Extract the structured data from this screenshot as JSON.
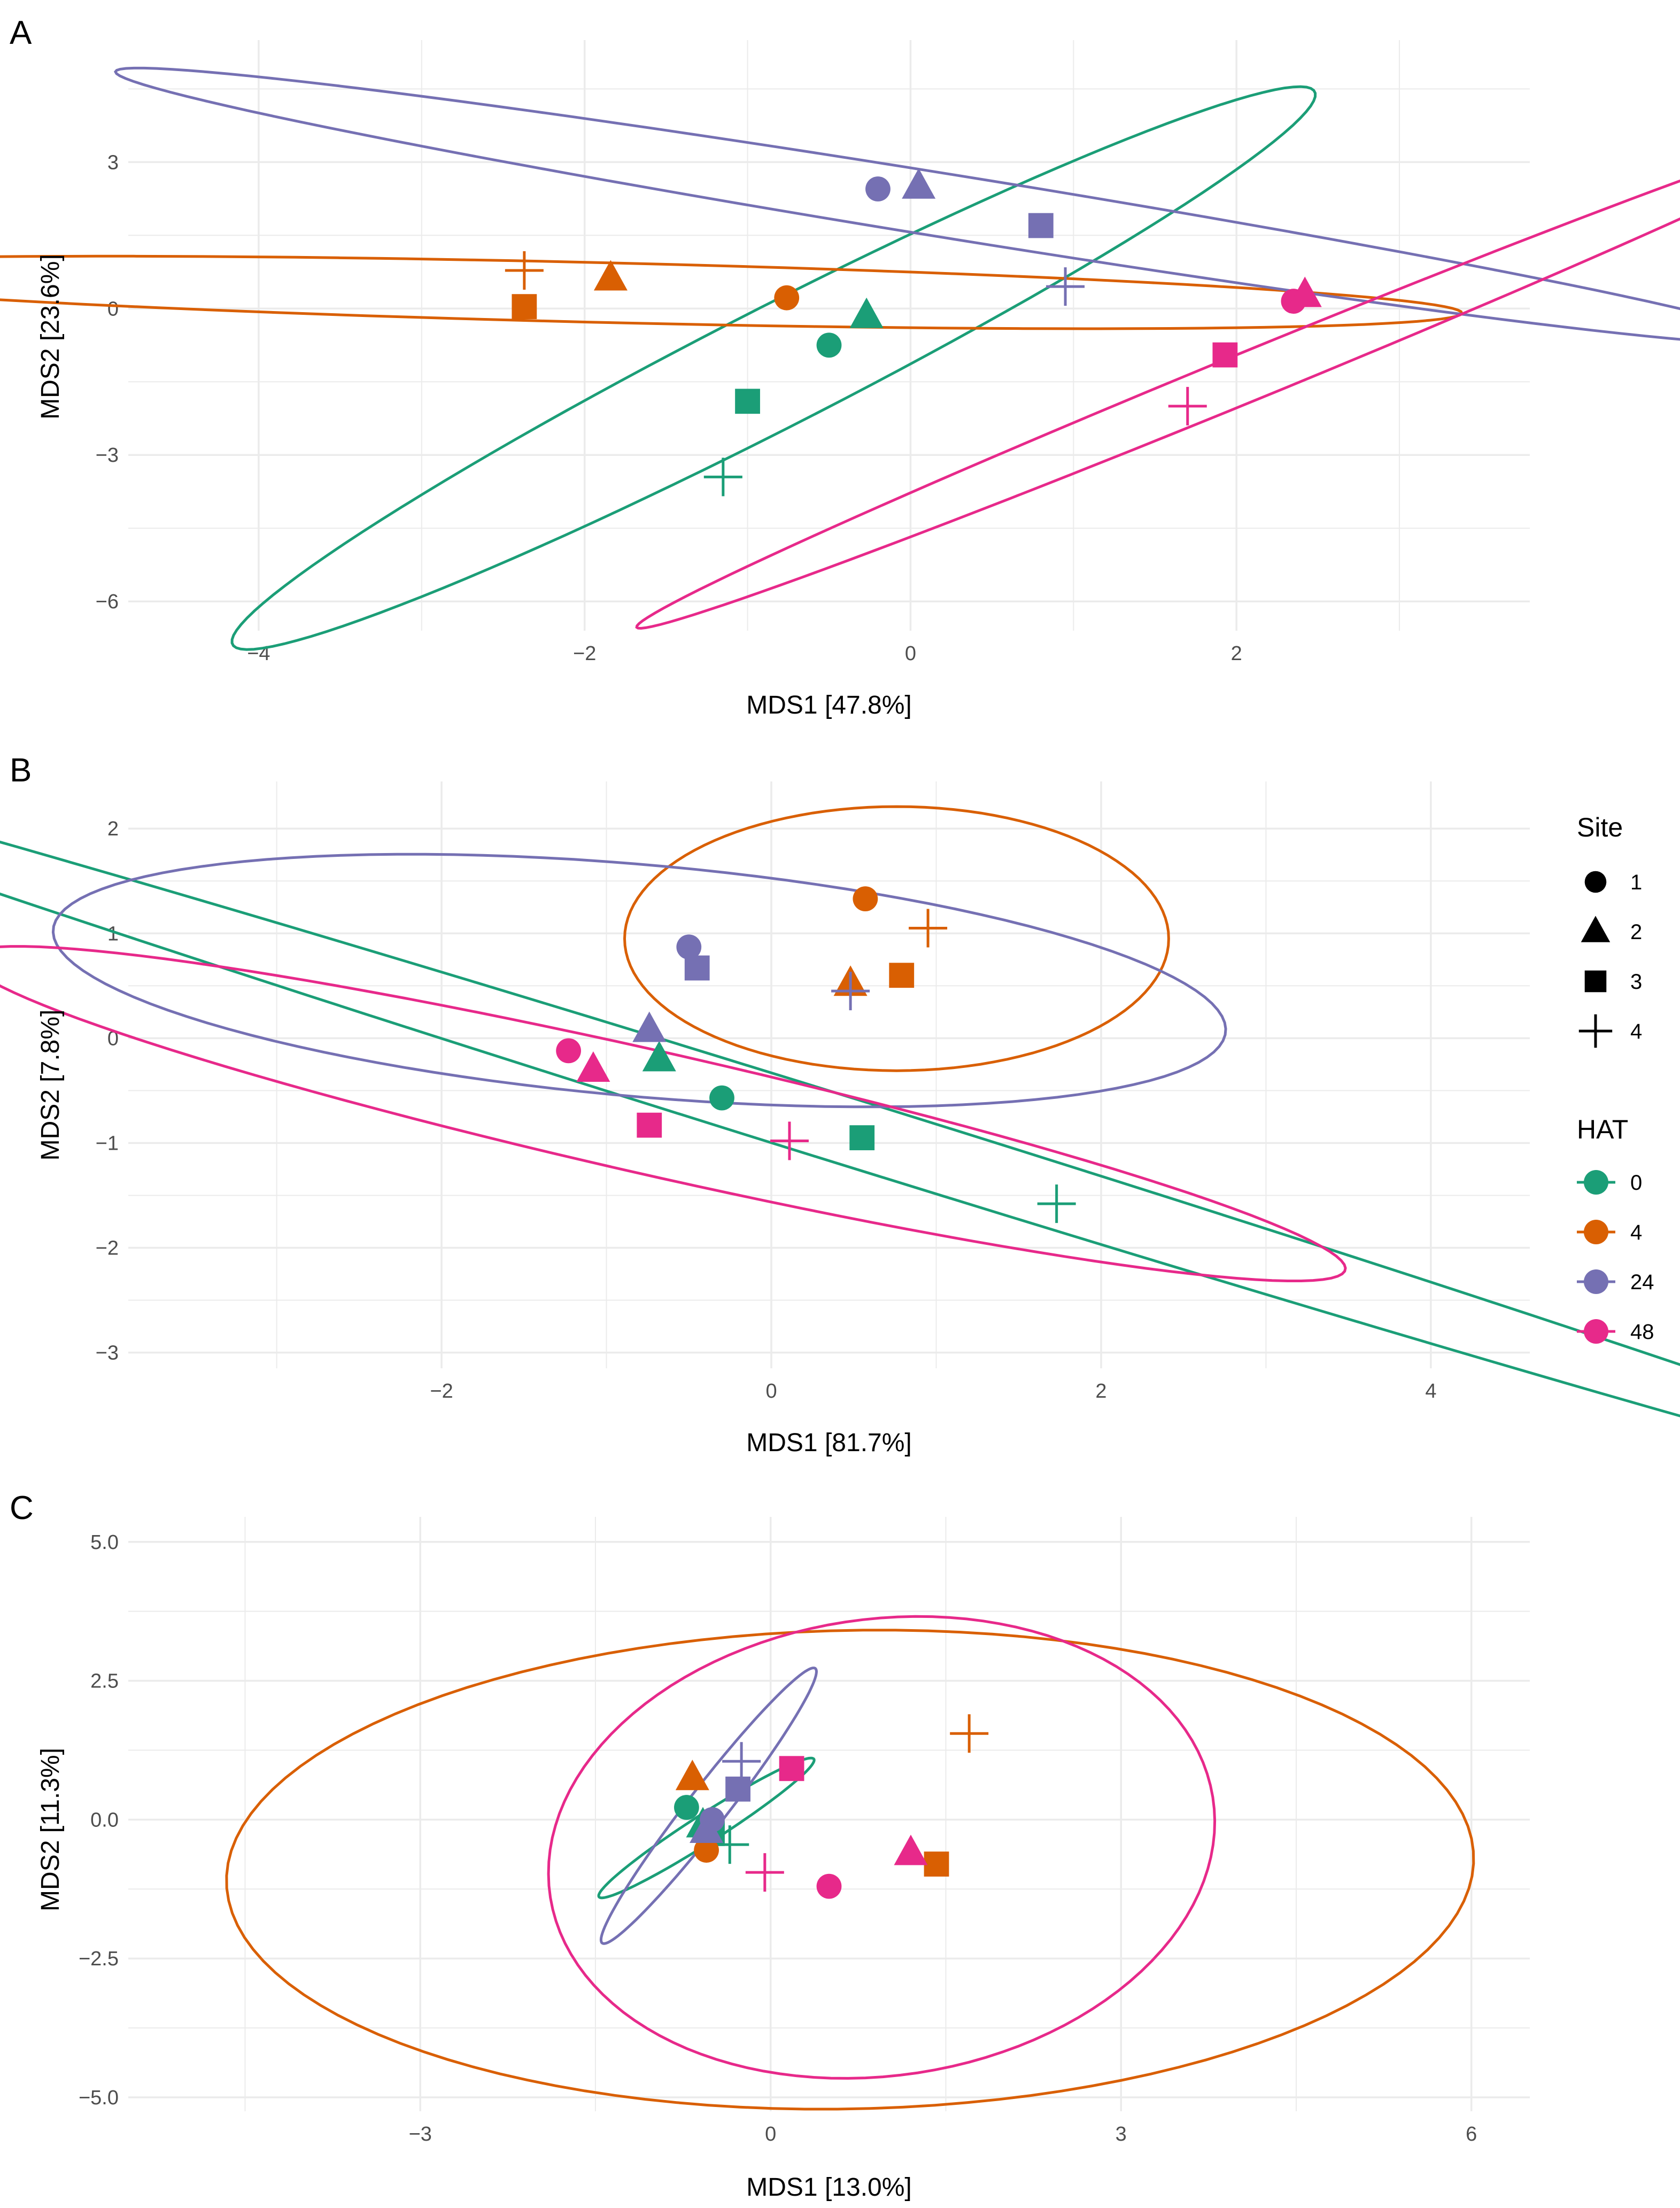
{
  "chart_data": [
    {
      "type": "scatter",
      "panel": "A",
      "xlabel": "MDS1 [47.8%]",
      "ylabel": "MDS2 [23.6%]",
      "xlim": [
        -4.8,
        3.8
      ],
      "ylim": [
        -6.6,
        5.5
      ],
      "xticks": [
        {
          "v": -4,
          "label": "−4"
        },
        {
          "v": -2,
          "label": "−2"
        },
        {
          "v": 0,
          "label": "0"
        },
        {
          "v": 2,
          "label": "2"
        }
      ],
      "yticks": [
        {
          "v": -6,
          "label": "−6"
        },
        {
          "v": -3,
          "label": "−3"
        },
        {
          "v": 0,
          "label": "0"
        },
        {
          "v": 3,
          "label": "3"
        }
      ],
      "points": [
        {
          "site": 1,
          "hat": "0",
          "x": -0.5,
          "y": -0.75
        },
        {
          "site": 2,
          "hat": "0",
          "x": -0.27,
          "y": -0.15
        },
        {
          "site": 3,
          "hat": "0",
          "x": -1.0,
          "y": -1.9
        },
        {
          "site": 4,
          "hat": "0",
          "x": -1.15,
          "y": -3.45
        },
        {
          "site": 1,
          "hat": "4",
          "x": -0.76,
          "y": 0.22
        },
        {
          "site": 2,
          "hat": "4",
          "x": -1.84,
          "y": 0.62
        },
        {
          "site": 3,
          "hat": "4",
          "x": -2.37,
          "y": 0.04
        },
        {
          "site": 4,
          "hat": "4",
          "x": -2.37,
          "y": 0.78
        },
        {
          "site": 1,
          "hat": "24",
          "x": -0.2,
          "y": 2.45
        },
        {
          "site": 2,
          "hat": "24",
          "x": 0.05,
          "y": 2.5
        },
        {
          "site": 3,
          "hat": "24",
          "x": 0.8,
          "y": 1.7
        },
        {
          "site": 4,
          "hat": "24",
          "x": 0.95,
          "y": 0.45
        },
        {
          "site": 1,
          "hat": "48",
          "x": 2.35,
          "y": 0.15
        },
        {
          "site": 2,
          "hat": "48",
          "x": 2.42,
          "y": 0.28
        },
        {
          "site": 3,
          "hat": "48",
          "x": 1.93,
          "y": -0.95
        },
        {
          "site": 4,
          "hat": "48",
          "x": 1.7,
          "y": -2.0
        }
      ],
      "ellipses": [
        {
          "hat": "0",
          "cx": -0.84,
          "cy": -1.22,
          "a": 6.62,
          "b": 0.69,
          "angle": 60.4
        },
        {
          "hat": "4",
          "cx": -1.92,
          "cy": 0.33,
          "a": 5.32,
          "b": 0.61,
          "angle": -4.6
        },
        {
          "hat": "24",
          "cx": 0.23,
          "cy": 2.1,
          "a": 5.81,
          "b": 0.58,
          "angle": -28.6
        },
        {
          "hat": "48",
          "cx": 2.09,
          "cy": -1.37,
          "a": 6.4,
          "b": 0.32,
          "angle": 54.0
        }
      ]
    },
    {
      "type": "scatter",
      "panel": "B",
      "xlabel": "MDS1 [81.7%]",
      "ylabel": "MDS2 [7.8%]",
      "xlim": [
        -3.9,
        4.6
      ],
      "ylim": [
        -3.15,
        2.45
      ],
      "xticks": [
        {
          "v": -2,
          "label": "−2"
        },
        {
          "v": 0,
          "label": "0"
        },
        {
          "v": 2,
          "label": "2"
        },
        {
          "v": 4,
          "label": "4"
        }
      ],
      "yticks": [
        {
          "v": -3,
          "label": "−3"
        },
        {
          "v": -2,
          "label": "−2"
        },
        {
          "v": -1,
          "label": "−1"
        },
        {
          "v": 0,
          "label": "0"
        },
        {
          "v": 1,
          "label": "1"
        },
        {
          "v": 2,
          "label": "2"
        }
      ],
      "points": [
        {
          "site": 1,
          "hat": "0",
          "x": -0.3,
          "y": -0.57
        },
        {
          "site": 2,
          "hat": "0",
          "x": -0.68,
          "y": -0.2
        },
        {
          "site": 3,
          "hat": "0",
          "x": 0.55,
          "y": -0.95
        },
        {
          "site": 4,
          "hat": "0",
          "x": 1.73,
          "y": -1.58
        },
        {
          "site": 1,
          "hat": "4",
          "x": 0.57,
          "y": 1.33
        },
        {
          "site": 2,
          "hat": "4",
          "x": 0.48,
          "y": 0.52
        },
        {
          "site": 3,
          "hat": "4",
          "x": 0.79,
          "y": 0.6
        },
        {
          "site": 4,
          "hat": "4",
          "x": 0.95,
          "y": 1.05
        },
        {
          "site": 1,
          "hat": "24",
          "x": -0.5,
          "y": 0.87
        },
        {
          "site": 2,
          "hat": "24",
          "x": -0.74,
          "y": 0.08
        },
        {
          "site": 3,
          "hat": "24",
          "x": -0.45,
          "y": 0.67
        },
        {
          "site": 4,
          "hat": "24",
          "x": 0.48,
          "y": 0.45
        },
        {
          "site": 1,
          "hat": "48",
          "x": -1.23,
          "y": -0.12
        },
        {
          "site": 2,
          "hat": "48",
          "x": -1.08,
          "y": -0.3
        },
        {
          "site": 3,
          "hat": "48",
          "x": -0.74,
          "y": -0.83
        },
        {
          "site": 4,
          "hat": "48",
          "x": 0.11,
          "y": -0.98
        }
      ],
      "ellipses": [
        {
          "hat": "0",
          "cx": 0.38,
          "cy": -0.85,
          "a": 8.4,
          "b": 0.3,
          "angle": -26.1
        },
        {
          "hat": "4",
          "cx": 0.76,
          "cy": 0.95,
          "a": 1.65,
          "b": 1.26,
          "angle": 0
        },
        {
          "hat": "24",
          "cx": -0.8,
          "cy": 0.55,
          "a": 3.59,
          "b": 1.1,
          "angle": -8.3
        },
        {
          "hat": "48",
          "cx": -0.7,
          "cy": -0.72,
          "a": 4.44,
          "b": 0.57,
          "angle": -19.8
        }
      ]
    },
    {
      "type": "scatter",
      "panel": "C",
      "xlabel": "MDS1 [13.0%]",
      "ylabel": "MDS2 [11.3%]",
      "xlim": [
        -5.5,
        6.5
      ],
      "ylim": [
        -5.25,
        5.45
      ],
      "xticks": [
        {
          "v": -3,
          "label": "−3"
        },
        {
          "v": 0,
          "label": "0"
        },
        {
          "v": 3,
          "label": "3"
        },
        {
          "v": 6,
          "label": "6"
        }
      ],
      "yticks": [
        {
          "v": -5,
          "label": "−5.0"
        },
        {
          "v": -2.5,
          "label": "−2.5"
        },
        {
          "v": 0,
          "label": "0.0"
        },
        {
          "v": 2.5,
          "label": "2.5"
        },
        {
          "v": 5,
          "label": "5.0"
        }
      ],
      "points": [
        {
          "site": 1,
          "hat": "0",
          "x": -0.72,
          "y": 0.22
        },
        {
          "site": 2,
          "hat": "0",
          "x": -0.58,
          "y": -0.1
        },
        {
          "site": 3,
          "hat": "0",
          "x": -0.5,
          "y": -0.25
        },
        {
          "site": 4,
          "hat": "0",
          "x": -0.35,
          "y": -0.45
        },
        {
          "site": 1,
          "hat": "4",
          "x": -0.55,
          "y": -0.55
        },
        {
          "site": 2,
          "hat": "4",
          "x": -0.67,
          "y": 0.75
        },
        {
          "site": 3,
          "hat": "4",
          "x": 1.42,
          "y": -0.8
        },
        {
          "site": 4,
          "hat": "4",
          "x": 1.7,
          "y": 1.55
        },
        {
          "site": 1,
          "hat": "24",
          "x": -0.5,
          "y": 0.0
        },
        {
          "site": 2,
          "hat": "24",
          "x": -0.55,
          "y": -0.2
        },
        {
          "site": 3,
          "hat": "24",
          "x": -0.28,
          "y": 0.55
        },
        {
          "site": 4,
          "hat": "24",
          "x": -0.25,
          "y": 1.05
        },
        {
          "site": 1,
          "hat": "48",
          "x": 0.5,
          "y": -1.2
        },
        {
          "site": 2,
          "hat": "48",
          "x": 1.2,
          "y": -0.6
        },
        {
          "site": 3,
          "hat": "48",
          "x": 0.18,
          "y": 0.92
        },
        {
          "site": 4,
          "hat": "48",
          "x": -0.05,
          "y": -0.95
        }
      ],
      "ellipses": [
        {
          "hat": "0",
          "cx": -0.55,
          "cy": -0.15,
          "a": 1.55,
          "b": 0.18,
          "angle": 54.0
        },
        {
          "hat": "4",
          "cx": 0.68,
          "cy": -0.9,
          "a": 5.35,
          "b": 4.3,
          "angle": 6.0
        },
        {
          "hat": "24",
          "cx": -0.53,
          "cy": 0.25,
          "a": 2.64,
          "b": 0.2,
          "angle": 70.0
        },
        {
          "hat": "48",
          "cx": 0.95,
          "cy": -0.5,
          "a": 2.82,
          "b": 4.18,
          "angle": -8.0
        }
      ]
    }
  ],
  "legend": {
    "site_title": "Site",
    "site_items": [
      {
        "label": "1",
        "shape": "circle"
      },
      {
        "label": "2",
        "shape": "triangle"
      },
      {
        "label": "3",
        "shape": "square"
      },
      {
        "label": "4",
        "shape": "plus"
      }
    ],
    "hat_title": "HAT",
    "hat_items": [
      {
        "label": "0",
        "color": "#1b9e77"
      },
      {
        "label": "4",
        "color": "#d95f02"
      },
      {
        "label": "24",
        "color": "#7570b3"
      },
      {
        "label": "48",
        "color": "#e7298a"
      }
    ]
  },
  "colors": {
    "0": "#1b9e77",
    "4": "#d95f02",
    "24": "#7570b3",
    "48": "#e7298a"
  },
  "panel_labels": [
    "A",
    "B",
    "C"
  ]
}
